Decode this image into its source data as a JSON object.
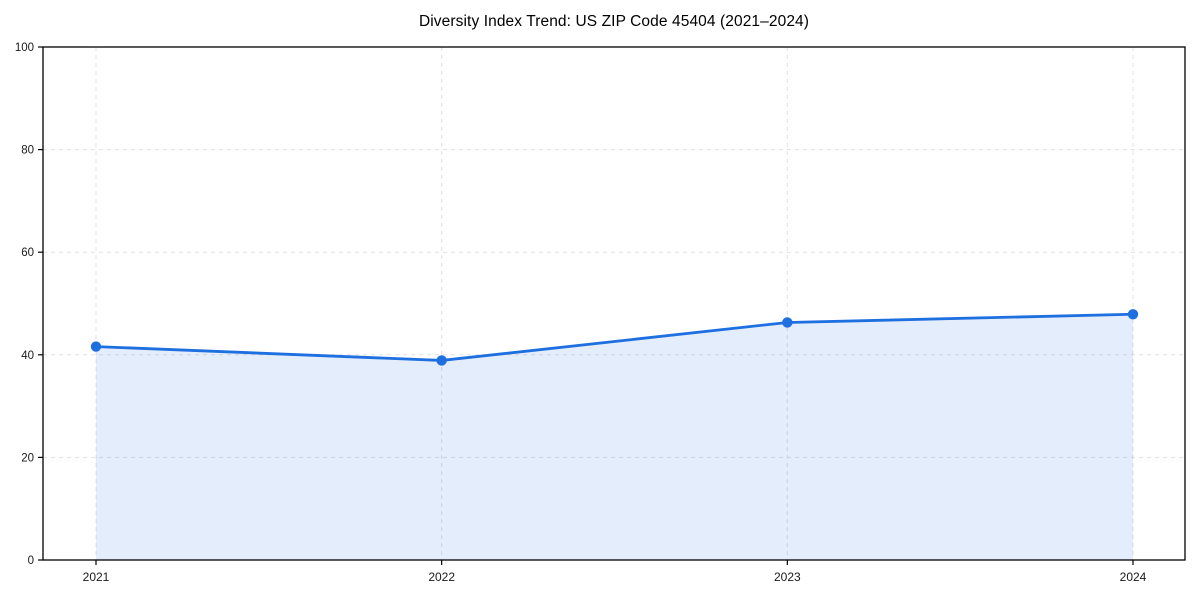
{
  "chart_data": {
    "type": "area",
    "title": "Diversity Index Trend: US ZIP Code 45404 (2021–2024)",
    "xlabel": "",
    "ylabel": "",
    "categories": [
      "2021",
      "2022",
      "2023",
      "2024"
    ],
    "series": [
      {
        "name": "Diversity Index",
        "values": [
          41.6,
          38.9,
          46.3,
          47.9
        ]
      }
    ],
    "ylim": [
      0,
      100
    ],
    "yticks": [
      0,
      20,
      40,
      60,
      80,
      100
    ],
    "grid": true,
    "grid_style": "dashed",
    "legend": false,
    "marker": "circle",
    "colors": {
      "line": "#1e6fe0",
      "marker": "#1e6fe0",
      "fill": "rgba(30, 111, 224, 0.12)",
      "grid": "#e1e1e1",
      "spine": "#000000",
      "tick_label": "#1a1a1a",
      "title": "#000000",
      "background": "#ffffff"
    }
  }
}
